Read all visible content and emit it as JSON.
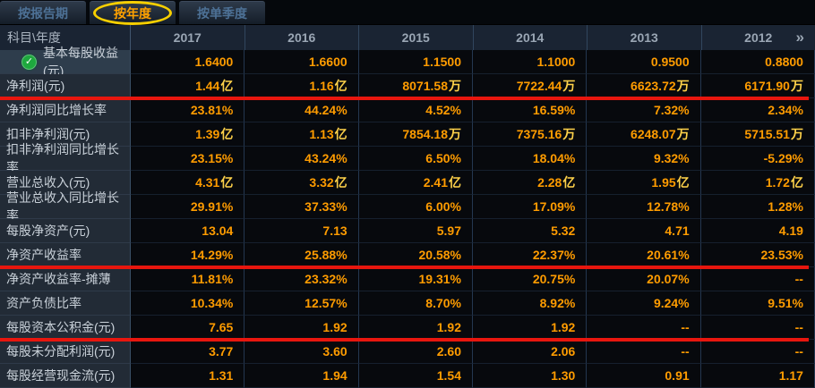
{
  "tabs": [
    {
      "label": "按报告期",
      "active": false
    },
    {
      "label": "按年度",
      "active": true
    },
    {
      "label": "按单季度",
      "active": false
    }
  ],
  "table": {
    "corner_header": "科目\\年度",
    "year_columns": [
      "2017",
      "2016",
      "2015",
      "2014",
      "2013",
      "2012"
    ],
    "rows": [
      {
        "label": "基本每股收益(元)",
        "checked": true,
        "highlighted": true,
        "red_underline": false,
        "values": [
          "1.6400",
          "1.6600",
          "1.1500",
          "1.1000",
          "0.9500",
          "0.8800"
        ]
      },
      {
        "label": "净利润(元)",
        "checked": false,
        "highlighted": false,
        "red_underline": true,
        "values": [
          "1.44亿",
          "1.16亿",
          "8071.58万",
          "7722.44万",
          "6623.72万",
          "6171.90万"
        ]
      },
      {
        "label": "净利润同比增长率",
        "checked": false,
        "highlighted": false,
        "red_underline": false,
        "values": [
          "23.81%",
          "44.24%",
          "4.52%",
          "16.59%",
          "7.32%",
          "2.34%"
        ]
      },
      {
        "label": "扣非净利润(元)",
        "checked": false,
        "highlighted": false,
        "red_underline": false,
        "values": [
          "1.39亿",
          "1.13亿",
          "7854.18万",
          "7375.16万",
          "6248.07万",
          "5715.51万"
        ]
      },
      {
        "label": "扣非净利润同比增长率",
        "checked": false,
        "highlighted": false,
        "red_underline": false,
        "values": [
          "23.15%",
          "43.24%",
          "6.50%",
          "18.04%",
          "9.32%",
          "-5.29%"
        ]
      },
      {
        "label": "营业总收入(元)",
        "checked": false,
        "highlighted": false,
        "red_underline": false,
        "values": [
          "4.31亿",
          "3.32亿",
          "2.41亿",
          "2.28亿",
          "1.95亿",
          "1.72亿"
        ]
      },
      {
        "label": "营业总收入同比增长率",
        "checked": false,
        "highlighted": false,
        "red_underline": false,
        "values": [
          "29.91%",
          "37.33%",
          "6.00%",
          "17.09%",
          "12.78%",
          "1.28%"
        ]
      },
      {
        "label": "每股净资产(元)",
        "checked": false,
        "highlighted": false,
        "red_underline": false,
        "values": [
          "13.04",
          "7.13",
          "5.97",
          "5.32",
          "4.71",
          "4.19"
        ]
      },
      {
        "label": "净资产收益率",
        "checked": false,
        "highlighted": false,
        "red_underline": true,
        "values": [
          "14.29%",
          "25.88%",
          "20.58%",
          "22.37%",
          "20.61%",
          "23.53%"
        ]
      },
      {
        "label": "净资产收益率-摊薄",
        "checked": false,
        "highlighted": false,
        "red_underline": false,
        "values": [
          "11.81%",
          "23.32%",
          "19.31%",
          "20.75%",
          "20.07%",
          "--"
        ]
      },
      {
        "label": "资产负债比率",
        "checked": false,
        "highlighted": false,
        "red_underline": false,
        "values": [
          "10.34%",
          "12.57%",
          "8.70%",
          "8.92%",
          "9.24%",
          "9.51%"
        ]
      },
      {
        "label": "每股资本公积金(元)",
        "checked": false,
        "highlighted": false,
        "red_underline": true,
        "values": [
          "7.65",
          "1.92",
          "1.92",
          "1.92",
          "--",
          "--"
        ]
      },
      {
        "label": "每股未分配利润(元)",
        "checked": false,
        "highlighted": false,
        "red_underline": false,
        "values": [
          "3.77",
          "3.60",
          "2.60",
          "2.06",
          "--",
          "--"
        ]
      },
      {
        "label": "每股经营现金流(元)",
        "checked": false,
        "highlighted": false,
        "red_underline": false,
        "values": [
          "1.31",
          "1.94",
          "1.54",
          "1.30",
          "0.91",
          "1.17"
        ]
      }
    ]
  },
  "icons": {
    "check_icon": "✓",
    "more_years_icon": "»"
  },
  "colors": {
    "value_orange": "#ff9c00",
    "unit_yellow": "#ffd24a",
    "underline_red": "#e8160e",
    "check_green": "#1ea83e",
    "tab_active_orange": "#ffa200",
    "highlight_ellipse_yellow": "#f7cf00",
    "label_column_bg": "#222b36",
    "header_bg": "#1a2433",
    "value_cell_bg": "#07090d"
  }
}
